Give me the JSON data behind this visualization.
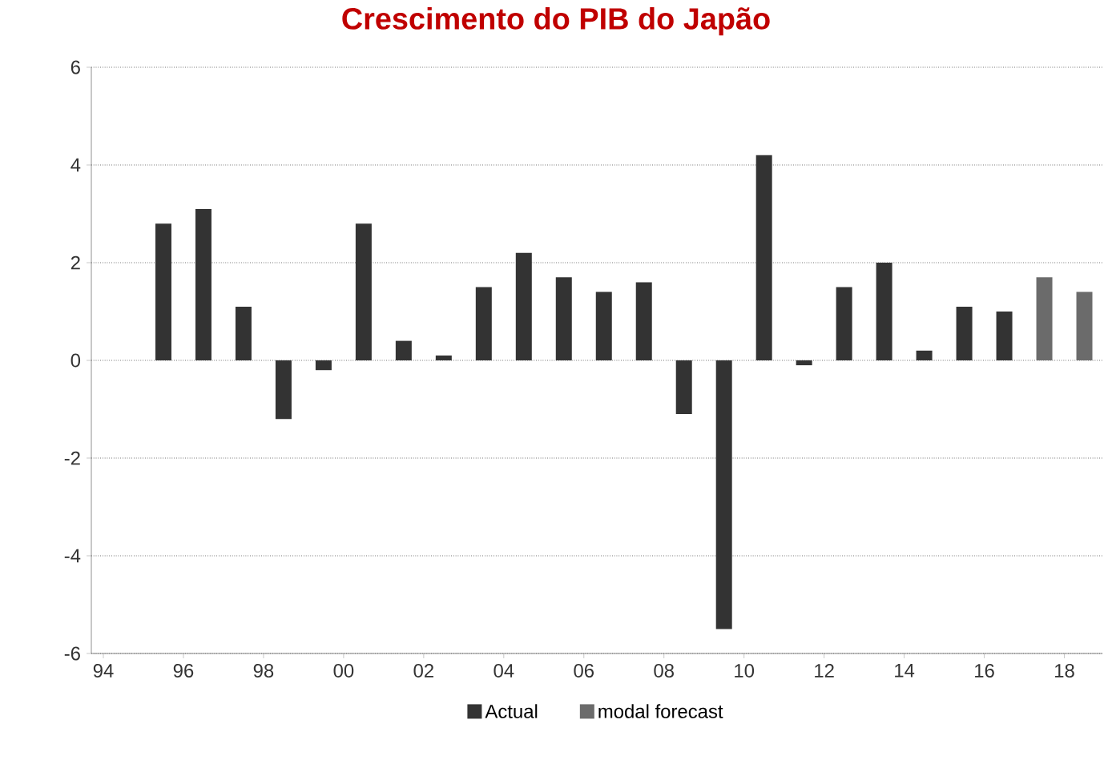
{
  "chart_data": {
    "type": "bar",
    "title": "Crescimento do PIB do Japão",
    "x": [
      1995.5,
      1996.5,
      1997.5,
      1998.5,
      1999.5,
      2000.5,
      2001.5,
      2002.5,
      2003.5,
      2004.5,
      2005.5,
      2006.5,
      2007.5,
      2008.5,
      2009.5,
      2010.5,
      2011.5,
      2012.5,
      2013.5,
      2014.5,
      2015.5,
      2016.5,
      2017.5,
      2018.5
    ],
    "series": [
      {
        "name": "Actual",
        "color": "#333333",
        "values": [
          2.8,
          3.1,
          1.1,
          -1.2,
          -0.2,
          2.8,
          0.4,
          0.1,
          1.5,
          2.2,
          1.7,
          1.4,
          1.6,
          -1.1,
          -5.5,
          4.2,
          -0.1,
          1.5,
          2.0,
          0.2,
          1.1,
          1.0,
          null,
          null
        ]
      },
      {
        "name": "modal forecast",
        "color": "#6b6b6b",
        "values": [
          null,
          null,
          null,
          null,
          null,
          null,
          null,
          null,
          null,
          null,
          null,
          null,
          null,
          null,
          null,
          null,
          null,
          null,
          null,
          null,
          null,
          null,
          1.7,
          1.4
        ]
      }
    ],
    "xlim": [
      1993.7,
      2018.95
    ],
    "xticks": [
      {
        "value": 1994,
        "label": "94"
      },
      {
        "value": 1996,
        "label": "96"
      },
      {
        "value": 1998,
        "label": "98"
      },
      {
        "value": 2000,
        "label": "00"
      },
      {
        "value": 2002,
        "label": "02"
      },
      {
        "value": 2004,
        "label": "04"
      },
      {
        "value": 2006,
        "label": "06"
      },
      {
        "value": 2008,
        "label": "08"
      },
      {
        "value": 2010,
        "label": "10"
      },
      {
        "value": 2012,
        "label": "12"
      },
      {
        "value": 2014,
        "label": "14"
      },
      {
        "value": 2016,
        "label": "16"
      },
      {
        "value": 2018,
        "label": "18"
      }
    ],
    "ylim": [
      -6,
      6
    ],
    "yticks": [
      -6,
      -4,
      -2,
      0,
      2,
      4,
      6
    ],
    "grid": "y",
    "legend": "bottom"
  }
}
